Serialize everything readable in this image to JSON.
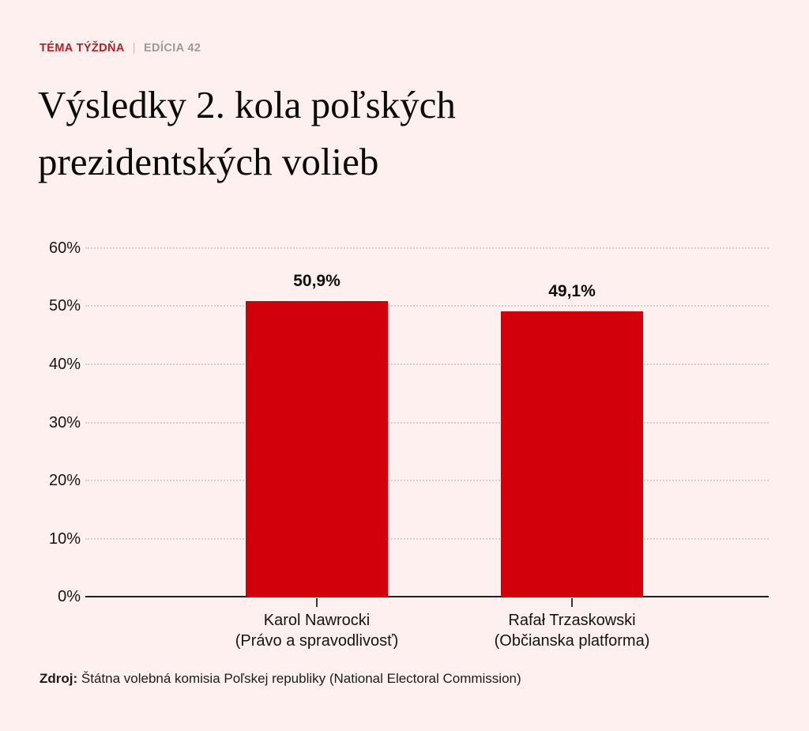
{
  "page": {
    "background_color": "#fdf0ee",
    "accent_red": "#b22126"
  },
  "header": {
    "kicker": "TÉMA TÝŽDŇA",
    "separator": "|",
    "edition": "EDÍCIA 42",
    "title_line1": "Výsledky 2. kola poľských",
    "title_line2": "prezidentských volieb"
  },
  "chart_data": {
    "type": "bar",
    "title": "Výsledky 2. kola poľských prezidentských volieb",
    "categories": [
      "Karol Nawrocki",
      "Rafał Trzaskowski"
    ],
    "category_sublabels": [
      "(Právo a spravodlivosť)",
      "(Občianska platforma)"
    ],
    "values": [
      50.9,
      49.1
    ],
    "value_labels": [
      "50,9%",
      "49,1%"
    ],
    "bar_color": "#d1000a",
    "ylim": [
      0,
      60
    ],
    "yticks": [
      60,
      50,
      40,
      30,
      20,
      10,
      0
    ],
    "ytick_labels": [
      "60%",
      "50%",
      "40%",
      "30%",
      "20%",
      "10%",
      "0%"
    ],
    "xlabel": "",
    "ylabel": "",
    "grid": "dotted horizontal gridlines, solid baseline axis",
    "legend": "none"
  },
  "footer": {
    "source_label": "Zdroj:",
    "source_text": "Štátna volebná komisia Poľskej republiky (National Electoral Commission)"
  }
}
